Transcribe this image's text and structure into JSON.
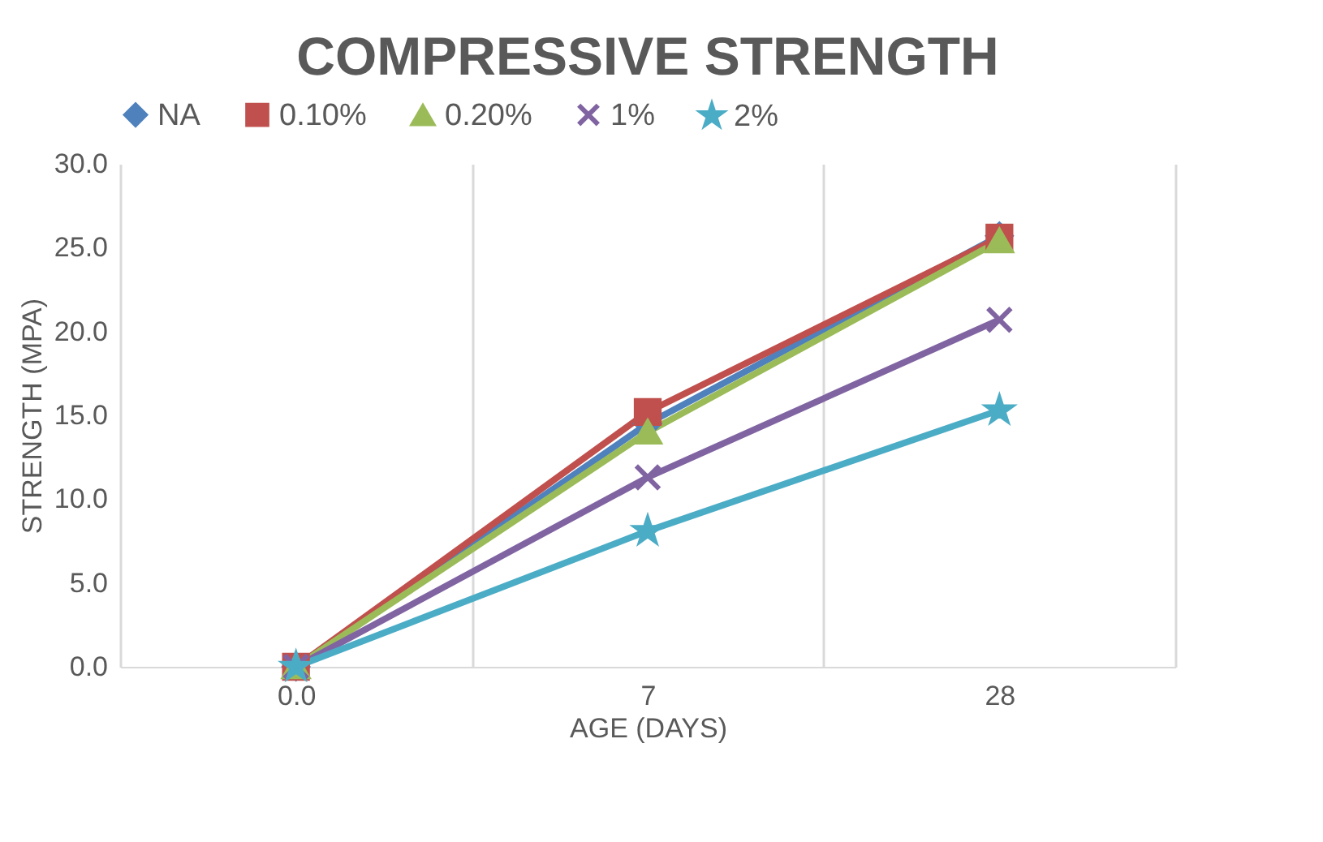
{
  "chart_data": {
    "type": "line",
    "title": "COMPRESSIVE STRENGTH",
    "xlabel": "AGE (DAYS)",
    "ylabel": "STRENGTH (MPA)",
    "categories": [
      "0.0",
      "7",
      "28"
    ],
    "series": [
      {
        "name": "NA",
        "color": "#4f81bd",
        "marker": "diamond",
        "values": [
          0,
          14.5,
          25.7
        ]
      },
      {
        "name": "0.10%",
        "color": "#c0504d",
        "marker": "square",
        "values": [
          0,
          15.2,
          25.6
        ]
      },
      {
        "name": "0.20%",
        "color": "#9bbb59",
        "marker": "triangle",
        "values": [
          0,
          14.0,
          25.4
        ]
      },
      {
        "name": "1%",
        "color": "#8064a2",
        "marker": "cross",
        "values": [
          0,
          11.3,
          20.7
        ]
      },
      {
        "name": "2%",
        "color": "#4bacc6",
        "marker": "star",
        "values": [
          0,
          8.1,
          15.3
        ]
      }
    ],
    "ylim": [
      0,
      30
    ],
    "yticks": [
      {
        "value": 0,
        "label": "0.0"
      },
      {
        "value": 5,
        "label": "5.0"
      },
      {
        "value": 10,
        "label": "10.0"
      },
      {
        "value": 15,
        "label": "15.0"
      },
      {
        "value": 20,
        "label": "20.0"
      },
      {
        "value": 25,
        "label": "25.0"
      },
      {
        "value": 30,
        "label": "30.0"
      }
    ],
    "grid": "x",
    "legend": "top"
  }
}
